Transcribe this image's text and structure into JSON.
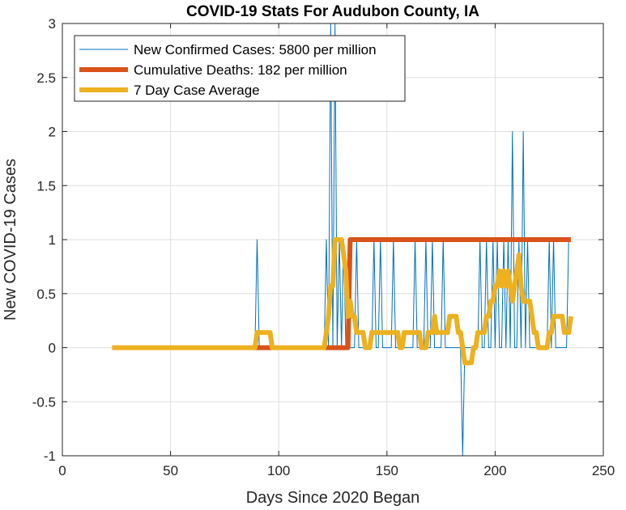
{
  "chart_data": {
    "type": "line",
    "title": "COVID-19 Stats For Audubon County, IA",
    "xlabel": "Days Since 2020 Began",
    "ylabel": "New COVID-19 Cases",
    "xlim": [
      0,
      250
    ],
    "ylim": [
      -1,
      3
    ],
    "xticks": [
      0,
      50,
      100,
      150,
      200,
      250
    ],
    "yticks": [
      -1,
      -0.5,
      0,
      0.5,
      1,
      1.5,
      2,
      2.5,
      3
    ],
    "grid": true,
    "legend_position": "top-left",
    "series": [
      {
        "name": "New Confirmed Cases: 5800 per million",
        "color": "#0072BD",
        "width": 1,
        "x": [
          23,
          89,
          90,
          91,
          121,
          122,
          123,
          124,
          125,
          126,
          127,
          128,
          129,
          130,
          131,
          132,
          133,
          134,
          135,
          136,
          137,
          138,
          139,
          140,
          141,
          142,
          143,
          144,
          145,
          146,
          147,
          148,
          149,
          150,
          151,
          152,
          153,
          154,
          155,
          156,
          157,
          158,
          159,
          160,
          161,
          162,
          163,
          164,
          165,
          166,
          167,
          168,
          169,
          170,
          171,
          172,
          173,
          174,
          175,
          176,
          177,
          178,
          179,
          180,
          181,
          182,
          183,
          184,
          185,
          186,
          187,
          188,
          189,
          190,
          191,
          192,
          193,
          194,
          195,
          196,
          197,
          198,
          199,
          200,
          201,
          202,
          203,
          204,
          205,
          206,
          207,
          208,
          209,
          210,
          211,
          212,
          213,
          214,
          215,
          216,
          217,
          218,
          219,
          220,
          221,
          222,
          223,
          224,
          225,
          226,
          227,
          228,
          229,
          230,
          231,
          232,
          233,
          234
        ],
        "y": [
          0,
          0,
          1,
          0,
          0,
          1,
          0,
          3,
          0,
          3,
          0,
          1,
          0,
          1,
          0,
          0,
          0,
          0,
          0,
          1,
          0,
          0,
          0,
          0,
          0,
          0,
          0,
          1,
          0,
          0,
          1,
          0,
          0,
          0,
          0,
          0,
          1,
          0,
          0,
          0,
          0,
          0,
          0,
          0,
          0,
          0,
          1,
          0,
          0,
          0,
          0,
          1,
          0,
          0,
          1,
          0,
          0,
          0,
          0,
          1,
          0,
          0,
          0,
          0,
          0,
          0,
          0,
          0,
          -1,
          0,
          0,
          0,
          0,
          0,
          0,
          0,
          1,
          0,
          0,
          1,
          0,
          0,
          1,
          0,
          1,
          0,
          0,
          1,
          0,
          1,
          0,
          2,
          0,
          0,
          1,
          0,
          2,
          0,
          1,
          0,
          0,
          0,
          0,
          0,
          0,
          0,
          0,
          0,
          1,
          0,
          1,
          0,
          0,
          0,
          0,
          0,
          0,
          1
        ]
      },
      {
        "name": "Cumulative Deaths: 182 per million",
        "color": "#D95319",
        "width": 6,
        "x": [
          23,
          89,
          90,
          95,
          96,
          121,
          122,
          131,
          132,
          133,
          235
        ],
        "y": [
          0,
          0,
          0,
          0,
          0,
          0,
          0,
          0,
          0,
          1,
          1
        ]
      },
      {
        "name": "7 Day Case Average",
        "color": "#EDB120",
        "width": 6,
        "x": [
          23,
          89,
          90,
          96,
          97,
          121,
          122,
          123,
          124,
          125,
          126,
          127,
          128,
          129,
          130,
          131,
          132,
          133,
          134,
          135,
          136,
          137,
          138,
          139,
          140,
          141,
          142,
          143,
          144,
          145,
          146,
          147,
          148,
          149,
          150,
          151,
          152,
          153,
          154,
          155,
          156,
          157,
          158,
          159,
          160,
          161,
          162,
          163,
          164,
          165,
          166,
          167,
          168,
          169,
          170,
          171,
          172,
          173,
          174,
          175,
          176,
          177,
          178,
          179,
          180,
          181,
          182,
          183,
          184,
          185,
          186,
          187,
          188,
          189,
          190,
          191,
          192,
          193,
          194,
          195,
          196,
          197,
          198,
          199,
          200,
          201,
          202,
          203,
          204,
          205,
          206,
          207,
          208,
          209,
          210,
          211,
          212,
          213,
          214,
          215,
          216,
          217,
          218,
          219,
          220,
          221,
          222,
          223,
          224,
          225,
          226,
          227,
          228,
          229,
          230,
          231,
          232,
          233,
          234,
          235
        ],
        "y": [
          0,
          0,
          0.14,
          0.14,
          0,
          0,
          0.14,
          0.29,
          0.57,
          0.57,
          1,
          1,
          1,
          1,
          0.86,
          0.71,
          0.29,
          0.43,
          0.29,
          0.29,
          0.14,
          0.14,
          0.14,
          0.14,
          0,
          0,
          0,
          0.14,
          0.14,
          0.14,
          0.14,
          0.14,
          0.14,
          0.14,
          0.14,
          0.14,
          0.14,
          0.14,
          0.14,
          0.14,
          0,
          0,
          0.14,
          0.14,
          0.14,
          0.14,
          0.14,
          0.14,
          0.14,
          0.14,
          0,
          0,
          0,
          0.14,
          0.14,
          0.14,
          0.29,
          0.14,
          0.14,
          0.14,
          0.14,
          0.14,
          0.14,
          0.29,
          0.29,
          0.29,
          0.29,
          0.14,
          0.14,
          0,
          -0.14,
          -0.14,
          -0.14,
          -0.14,
          0,
          0,
          0.14,
          0.14,
          0.14,
          0.14,
          0.29,
          0.29,
          0.43,
          0.43,
          0.57,
          0.57,
          0.71,
          0.57,
          0.71,
          0.57,
          0.71,
          0.57,
          0.43,
          0.57,
          0.71,
          0.86,
          0.57,
          0.43,
          0.43,
          0.43,
          0.43,
          0.29,
          0.14,
          0.14,
          0,
          0,
          0,
          0,
          0,
          0.14,
          0.14,
          0.29,
          0.29,
          0.29,
          0.29,
          0.29,
          0.14,
          0.14,
          0.14,
          0.29
        ]
      }
    ]
  }
}
